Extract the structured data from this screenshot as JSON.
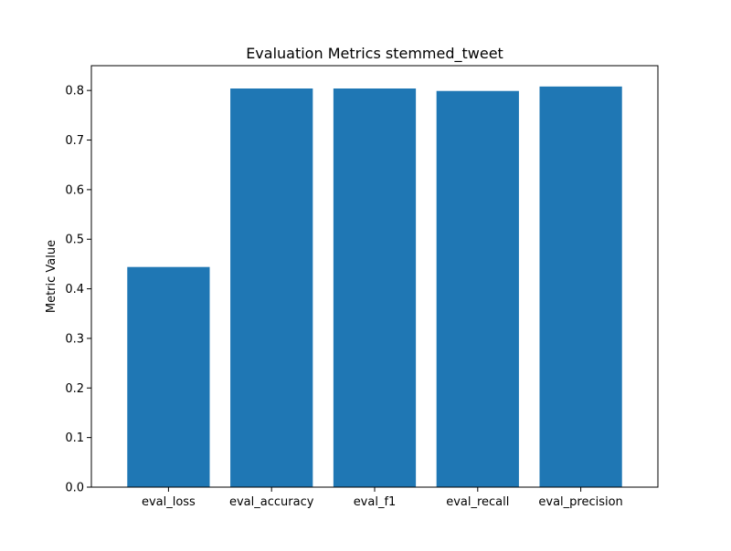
{
  "chart_data": {
    "type": "bar",
    "title": "Evaluation Metrics stemmed_tweet",
    "xlabel": "",
    "ylabel": "Metric Value",
    "categories": [
      "eval_loss",
      "eval_accuracy",
      "eval_f1",
      "eval_recall",
      "eval_precision"
    ],
    "values": [
      0.444,
      0.804,
      0.804,
      0.799,
      0.808
    ],
    "ylim": [
      0,
      0.85
    ],
    "yticks": [
      "0.0",
      "0.1",
      "0.2",
      "0.3",
      "0.4",
      "0.5",
      "0.6",
      "0.7",
      "0.8"
    ],
    "grid": false,
    "bar_color": "#1f77b4"
  }
}
